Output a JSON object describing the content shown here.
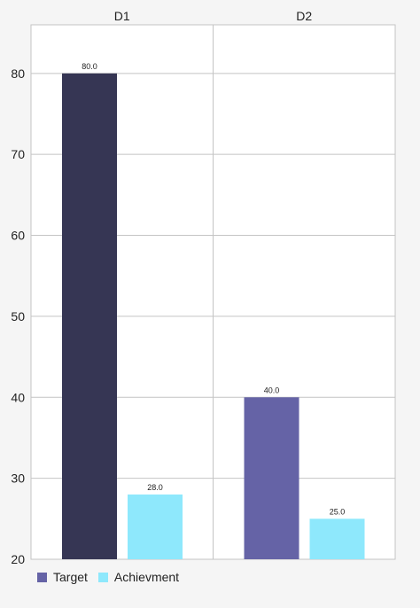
{
  "chart_data": {
    "type": "bar",
    "categories": [
      "D1",
      "D2"
    ],
    "series": [
      {
        "name": "Target",
        "values": [
          80.0,
          40.0
        ]
      },
      {
        "name": "Achievment",
        "values": [
          28.0,
          25.0
        ]
      }
    ],
    "bar_colors": [
      [
        "#363654",
        "#6563a6"
      ],
      [
        "#8ee8fc",
        "#8ee8fc"
      ]
    ],
    "legend_colors": [
      "#6563a6",
      "#8ee8fc"
    ],
    "data_labels": [
      [
        "80.0",
        "40.0"
      ],
      [
        "28.0",
        "25.0"
      ]
    ],
    "yticks": [
      20,
      30,
      40,
      50,
      60,
      70,
      80
    ],
    "ylim": [
      20,
      86
    ],
    "grid": true,
    "legend_position": "bottom-left",
    "category_label_position": "top",
    "title": "",
    "xlabel": "",
    "ylabel": ""
  }
}
